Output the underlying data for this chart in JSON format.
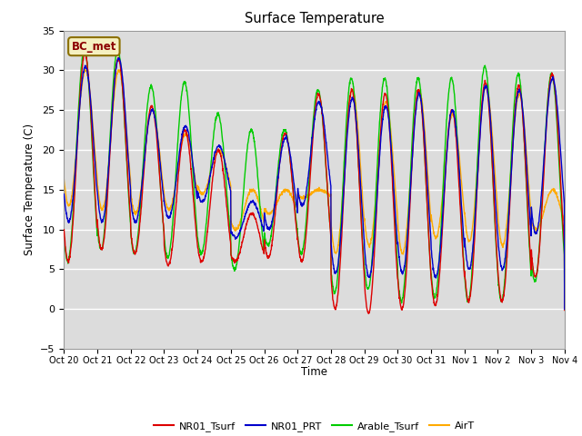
{
  "title": "Surface Temperature",
  "ylabel": "Surface Temperature (C)",
  "xlabel": "Time",
  "ylim": [
    -5,
    35
  ],
  "annotation": "BC_met",
  "legend_labels": [
    "NR01_Tsurf",
    "NR01_PRT",
    "Arable_Tsurf",
    "AirT"
  ],
  "line_colors": [
    "#dd0000",
    "#0000cc",
    "#00cc00",
    "#ffaa00"
  ],
  "background_color": "#dcdcdc",
  "xtick_labels": [
    "Oct 20",
    "Oct 21",
    "Oct 22",
    "Oct 23",
    "Oct 24",
    "Oct 25",
    "Oct 26",
    "Oct 27",
    "Oct 28",
    "Oct 29",
    "Oct 30",
    "Oct 31",
    "Nov 1",
    "Nov 2",
    "Nov 3",
    "Nov 4"
  ],
  "n_days": 15,
  "pts_per_day": 144,
  "nr01_day_mins": [
    6.0,
    7.5,
    7.0,
    5.5,
    6.0,
    6.0,
    6.5,
    6.0,
    0.0,
    -0.5,
    0.0,
    0.5,
    1.0,
    1.0,
    4.0
  ],
  "nr01_day_maxs": [
    32.0,
    31.5,
    25.5,
    22.5,
    20.0,
    12.0,
    22.0,
    27.0,
    27.5,
    27.0,
    27.5,
    25.0,
    28.5,
    28.0,
    29.5
  ],
  "prt_day_mins": [
    11.0,
    11.0,
    11.0,
    11.5,
    13.5,
    9.0,
    10.0,
    13.0,
    4.5,
    4.0,
    4.5,
    4.0,
    5.0,
    5.0,
    9.5
  ],
  "prt_day_maxs": [
    30.5,
    31.5,
    25.0,
    23.0,
    20.5,
    13.5,
    21.5,
    26.0,
    26.5,
    25.5,
    27.0,
    25.0,
    28.0,
    27.5,
    29.0
  ],
  "arable_day_mins": [
    6.0,
    7.5,
    7.0,
    6.5,
    7.0,
    5.0,
    8.0,
    7.0,
    2.0,
    2.5,
    1.0,
    1.5,
    1.0,
    1.0,
    3.5
  ],
  "arable_day_maxs": [
    32.5,
    32.5,
    28.0,
    28.5,
    24.5,
    22.5,
    22.5,
    27.5,
    29.0,
    29.0,
    29.0,
    29.0,
    30.5,
    29.5,
    29.5
  ],
  "airt_day_mins": [
    13.0,
    12.5,
    12.0,
    12.5,
    14.5,
    10.0,
    12.0,
    14.0,
    7.0,
    8.0,
    7.0,
    9.0,
    8.5,
    8.0,
    10.0
  ],
  "airt_day_maxs": [
    30.0,
    30.0,
    25.0,
    22.0,
    20.0,
    15.0,
    15.0,
    15.0,
    27.5,
    26.0,
    27.5,
    24.5,
    28.0,
    27.0,
    15.0
  ],
  "nr01_phase": 0.375,
  "prt_phase": 0.39,
  "arable_phase": 0.36,
  "airt_phase": 0.395
}
